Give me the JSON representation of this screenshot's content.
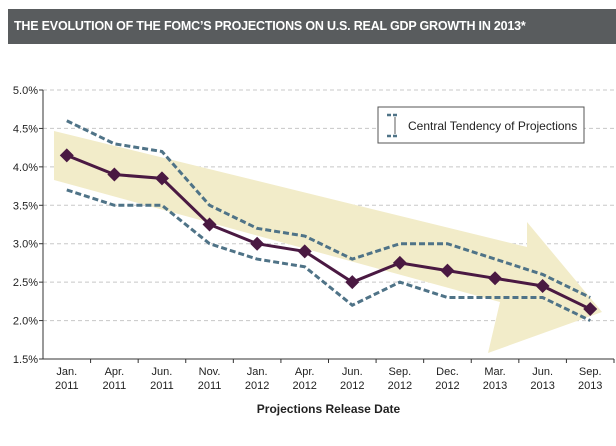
{
  "header": {
    "title": "THE EVOLUTION OF THE FOMC’S PROJECTIONS ON U.S. REAL GDP GROWTH IN 2013*"
  },
  "chart_data": {
    "type": "line",
    "title": "THE EVOLUTION OF THE FOMC’S PROJECTIONS ON U.S. REAL GDP GROWTH IN 2013*",
    "xlabel": "Projections Release Date",
    "ylabel": "",
    "categories": [
      [
        "Jan.",
        "2011"
      ],
      [
        "Apr.",
        "2011"
      ],
      [
        "Jun.",
        "2011"
      ],
      [
        "Nov.",
        "2011"
      ],
      [
        "Jan.",
        "2012"
      ],
      [
        "Apr.",
        "2012"
      ],
      [
        "Jun.",
        "2012"
      ],
      [
        "Sep.",
        "2012"
      ],
      [
        "Dec.",
        "2012"
      ],
      [
        "Mar.",
        "2013"
      ],
      [
        "Jun.",
        "2013"
      ],
      [
        "Sep.",
        "2013"
      ]
    ],
    "ylim": [
      1.5,
      5.0
    ],
    "yticks": [
      1.5,
      2.0,
      2.5,
      3.0,
      3.5,
      4.0,
      4.5,
      5.0
    ],
    "ytick_labels": [
      "1.5%",
      "2.0%",
      "2.5%",
      "3.0%",
      "3.5%",
      "4.0%",
      "4.5%",
      "5.0%"
    ],
    "grid": true,
    "legend": {
      "placement": "top-right",
      "entries": [
        "Central Tendency of Projections"
      ]
    },
    "series": [
      {
        "values": [
          4.15,
          3.9,
          3.85,
          3.25,
          3.0,
          2.9,
          2.5,
          2.75,
          2.65,
          2.55,
          2.45,
          2.15
        ],
        "color": "#4a1942",
        "marker": "diamond"
      },
      {
        "name": "Central Tendency of Projections",
        "role": "upper",
        "values": [
          4.6,
          4.3,
          4.2,
          3.5,
          3.2,
          3.1,
          2.8,
          3.0,
          3.0,
          2.8,
          2.6,
          2.3
        ],
        "color": "#4f7387",
        "style": "dashed"
      },
      {
        "name": "Central Tendency of Projections",
        "role": "lower",
        "values": [
          3.7,
          3.5,
          3.5,
          3.0,
          2.8,
          2.7,
          2.2,
          2.5,
          2.3,
          2.3,
          2.3,
          2.0
        ],
        "color": "#4f7387",
        "style": "dashed"
      }
    ],
    "trend_arrow_color": "#f2ecc9"
  }
}
